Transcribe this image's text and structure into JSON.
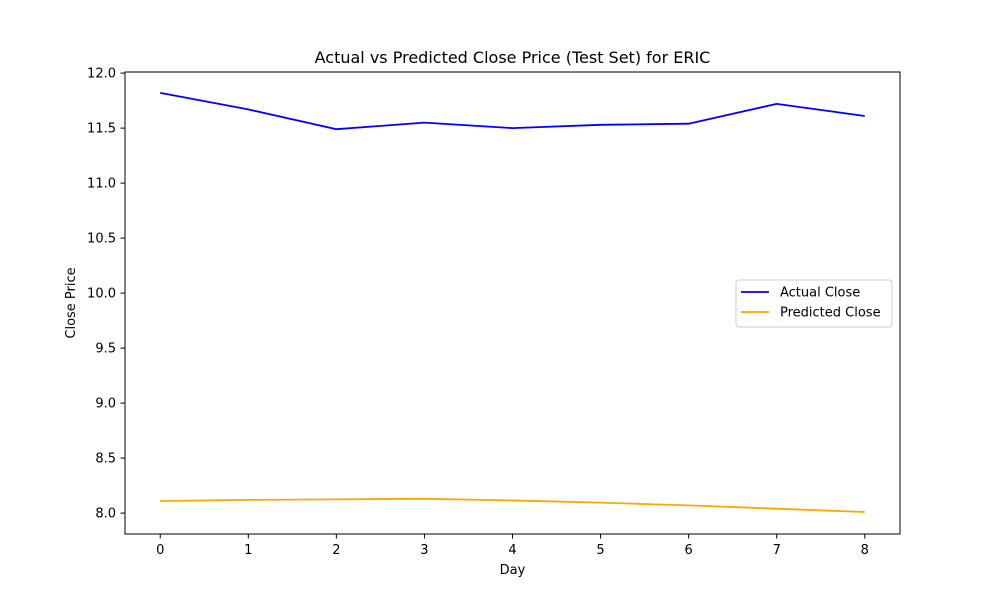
{
  "chart_data": {
    "type": "line",
    "title": "Actual vs Predicted Close Price (Test Set) for ERIC",
    "xlabel": "Day",
    "ylabel": "Close Price",
    "x": [
      0,
      1,
      2,
      3,
      4,
      5,
      6,
      7,
      8
    ],
    "xticks": [
      "0",
      "1",
      "2",
      "3",
      "4",
      "5",
      "6",
      "7",
      "8"
    ],
    "yticks": [
      "8.0",
      "8.5",
      "9.0",
      "9.5",
      "10.0",
      "10.5",
      "11.0",
      "11.5",
      "12.0"
    ],
    "xlim": [
      -0.4,
      8.4
    ],
    "ylim": [
      7.81,
      12.01
    ],
    "grid": false,
    "legend_position": "center-right",
    "series": [
      {
        "name": "Actual Close",
        "color": "#0000ff",
        "values": [
          11.82,
          11.67,
          11.49,
          11.55,
          11.5,
          11.53,
          11.54,
          11.72,
          11.61
        ]
      },
      {
        "name": "Predicted Close",
        "color": "#ffa500",
        "values": [
          8.11,
          8.12,
          8.125,
          8.13,
          8.115,
          8.095,
          8.07,
          8.04,
          8.01
        ]
      }
    ]
  }
}
